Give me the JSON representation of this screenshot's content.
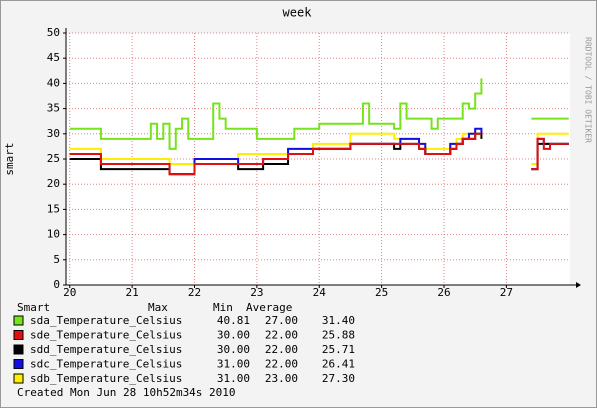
{
  "chart_data": {
    "type": "line",
    "step": true,
    "title": "week",
    "y_label": "smart",
    "watermark": "RRDTOOL / TOBI OETIKER",
    "x": [
      20.0,
      20.1,
      20.2,
      20.3,
      20.4,
      20.5,
      20.6,
      20.7,
      20.8,
      20.9,
      21.0,
      21.1,
      21.2,
      21.3,
      21.4,
      21.5,
      21.6,
      21.7,
      21.8,
      21.9,
      22.0,
      22.1,
      22.2,
      22.3,
      22.4,
      22.5,
      22.6,
      22.7,
      22.8,
      22.9,
      23.0,
      23.1,
      23.2,
      23.3,
      23.4,
      23.5,
      23.6,
      23.7,
      23.8,
      23.9,
      24.0,
      24.1,
      24.2,
      24.3,
      24.4,
      24.5,
      24.6,
      24.7,
      24.8,
      24.9,
      25.0,
      25.1,
      25.2,
      25.3,
      25.4,
      25.5,
      25.6,
      25.7,
      25.8,
      25.9,
      26.0,
      26.1,
      26.2,
      26.3,
      26.4,
      26.5,
      26.6,
      26.7,
      26.8,
      26.9,
      27.0,
      27.1,
      27.2,
      27.3,
      27.4,
      27.5,
      27.6,
      27.7,
      27.8,
      27.9,
      28.0
    ],
    "xlim": [
      19.94,
      28.02
    ],
    "xticks": [
      20,
      21,
      22,
      23,
      24,
      25,
      26,
      27
    ],
    "ylim": [
      0,
      50
    ],
    "yticks": [
      0,
      5,
      10,
      15,
      20,
      25,
      30,
      35,
      40,
      45,
      50
    ],
    "grid": true,
    "legend_title": "Smart",
    "legend_columns": [
      "Max",
      "Min",
      "Average"
    ],
    "series": [
      {
        "name": "sda_Temperature_Celsius",
        "color": "#77e31c",
        "stats": [
          "40.81",
          "27.00",
          "31.40"
        ],
        "values": [
          31,
          31,
          31,
          31,
          31,
          29,
          29,
          29,
          29,
          29,
          29,
          29,
          29,
          32,
          29,
          32,
          27,
          31,
          33,
          29,
          29,
          29,
          29,
          36,
          33,
          31,
          31,
          31,
          31,
          31,
          29,
          29,
          29,
          29,
          29,
          29,
          31,
          31,
          31,
          31,
          32,
          32,
          32,
          32,
          32,
          32,
          32,
          36,
          32,
          32,
          32,
          32,
          31,
          36,
          33,
          33,
          33,
          33,
          31,
          33,
          33,
          33,
          33,
          36,
          35,
          38,
          41,
          null,
          null,
          null,
          null,
          null,
          null,
          null,
          33,
          33,
          33,
          33,
          33,
          33,
          33
        ]
      },
      {
        "name": "sde_Temperature_Celsius",
        "color": "#e01010",
        "stats": [
          "30.00",
          "22.00",
          "25.88"
        ],
        "values": [
          26,
          26,
          26,
          26,
          26,
          24,
          24,
          24,
          24,
          24,
          24,
          24,
          24,
          24,
          24,
          24,
          22,
          22,
          22,
          22,
          24,
          24,
          24,
          24,
          24,
          24,
          24,
          24,
          24,
          24,
          24,
          25,
          25,
          25,
          25,
          26,
          26,
          26,
          26,
          27,
          27,
          27,
          27,
          27,
          27,
          28,
          28,
          28,
          28,
          28,
          28,
          28,
          28,
          28,
          28,
          28,
          27,
          26,
          26,
          26,
          26,
          27,
          28,
          29,
          29,
          30,
          30,
          null,
          null,
          null,
          null,
          null,
          null,
          null,
          23,
          29,
          27,
          28,
          28,
          28,
          28
        ]
      },
      {
        "name": "sdd_Temperature_Celsius",
        "color": "#000000",
        "stats": [
          "30.00",
          "22.00",
          "25.71"
        ],
        "values": [
          25,
          25,
          25,
          25,
          25,
          23,
          23,
          23,
          23,
          23,
          23,
          23,
          23,
          23,
          23,
          23,
          22,
          22,
          22,
          22,
          24,
          24,
          24,
          24,
          24,
          24,
          24,
          23,
          23,
          23,
          23,
          24,
          24,
          24,
          24,
          26,
          26,
          26,
          26,
          27,
          27,
          27,
          27,
          27,
          27,
          28,
          28,
          28,
          28,
          28,
          28,
          28,
          27,
          28,
          28,
          28,
          27,
          26,
          26,
          26,
          26,
          27,
          28,
          29,
          29,
          30,
          29,
          null,
          null,
          null,
          null,
          null,
          null,
          null,
          23,
          28,
          28,
          28,
          28,
          28,
          28
        ]
      },
      {
        "name": "sdc_Temperature_Celsius",
        "color": "#1010e0",
        "stats": [
          "31.00",
          "22.00",
          "26.41"
        ],
        "values": [
          26,
          26,
          26,
          26,
          26,
          24,
          24,
          24,
          24,
          24,
          24,
          24,
          24,
          24,
          24,
          24,
          22,
          22,
          22,
          22,
          25,
          25,
          25,
          25,
          25,
          25,
          25,
          24,
          24,
          24,
          24,
          25,
          25,
          25,
          25,
          27,
          27,
          27,
          27,
          27,
          27,
          27,
          27,
          27,
          27,
          28,
          28,
          28,
          28,
          28,
          28,
          28,
          28,
          29,
          29,
          29,
          28,
          26,
          26,
          26,
          26,
          28,
          28,
          29,
          30,
          31,
          30,
          null,
          null,
          null,
          null,
          null,
          null,
          null,
          23,
          29,
          28,
          28,
          28,
          28,
          28
        ]
      },
      {
        "name": "sdb_Temperature_Celsius",
        "color": "#ffee00",
        "stats": [
          "31.00",
          "23.00",
          "27.30"
        ],
        "values": [
          27,
          27,
          27,
          27,
          27,
          25,
          25,
          25,
          25,
          25,
          25,
          25,
          25,
          25,
          25,
          25,
          24,
          24,
          24,
          24,
          25,
          25,
          25,
          25,
          25,
          25,
          25,
          26,
          26,
          26,
          26,
          26,
          26,
          26,
          26,
          27,
          27,
          27,
          27,
          28,
          28,
          28,
          28,
          28,
          28,
          30,
          30,
          30,
          30,
          30,
          30,
          30,
          29,
          29,
          29,
          29,
          28,
          27,
          27,
          27,
          27,
          28,
          29,
          30,
          30,
          30,
          30,
          null,
          null,
          null,
          null,
          null,
          null,
          null,
          24,
          30,
          30,
          30,
          30,
          30,
          30
        ]
      }
    ],
    "footer": "Created Mon Jun 28 10h52m34s 2010"
  }
}
